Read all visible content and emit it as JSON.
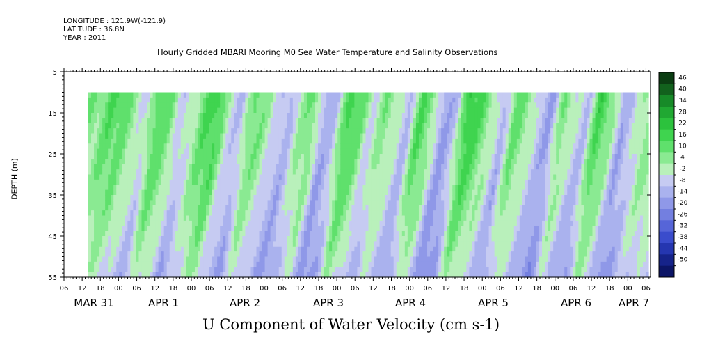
{
  "header": {
    "longitude": "LONGITUDE : 121.9W(-121.9)",
    "latitude": "LATITUDE : 36.8N",
    "year": "YEAR : 2011"
  },
  "chart_data": {
    "type": "heatmap",
    "title": "Hourly Gridded MBARI Mooring M0 Sea Water Temperature and Salinity Observations",
    "xlabel": "U Component of Water Velocity (cm s-1)",
    "ylabel": "DEPTH (m)",
    "y_ticks": [
      "5",
      "15",
      "25",
      "35",
      "45",
      "55"
    ],
    "ylim": [
      55,
      5
    ],
    "hour_ticks": [
      "06",
      "12",
      "18",
      "00",
      "06",
      "12",
      "18",
      "00",
      "06",
      "12",
      "18",
      "00",
      "06",
      "12",
      "18",
      "00",
      "06",
      "12",
      "18",
      "00",
      "06",
      "12",
      "18",
      "00",
      "06",
      "12",
      "18",
      "00",
      "06",
      "12",
      "18",
      "00",
      "06"
    ],
    "date_labels": [
      "MAR 31",
      "APR  1",
      "APR  2",
      "APR  3",
      "APR  4",
      "APR  5",
      "APR  6",
      "APR  7"
    ],
    "colorbar": {
      "labels": [
        "46",
        "40",
        "34",
        "28",
        "22",
        "16",
        "10",
        "4",
        "-2",
        "-8",
        "-14",
        "-20",
        "-26",
        "-32",
        "-38",
        "-44",
        "-50"
      ],
      "colors": [
        "#0b3d12",
        "#12611d",
        "#178a28",
        "#20a832",
        "#2cc23d",
        "#3fd44f",
        "#5fe06c",
        "#8aea92",
        "#b9f0bb",
        "#c6cbf2",
        "#aab2ee",
        "#8f98e8",
        "#737fe0",
        "#5665d8",
        "#3a4ccc",
        "#2536b0",
        "#16238a",
        "#0c1566"
      ],
      "range": [
        -50,
        46
      ]
    },
    "data_extent_m": [
      10,
      55
    ],
    "note_green_positive_blue_negative": true,
    "surface_velocity_pattern": [
      8,
      6,
      14,
      12,
      4,
      -4,
      16,
      10,
      -6,
      2,
      14,
      18,
      -2,
      -8,
      12,
      6,
      -4,
      -10,
      4,
      10,
      -12,
      -6,
      18,
      12,
      -4,
      8,
      2,
      -10,
      16,
      6,
      -14,
      -8,
      20,
      14,
      4,
      -10,
      12,
      6,
      -6,
      -14,
      10,
      -2,
      -8,
      18,
      8,
      -12,
      -4,
      6
    ]
  }
}
